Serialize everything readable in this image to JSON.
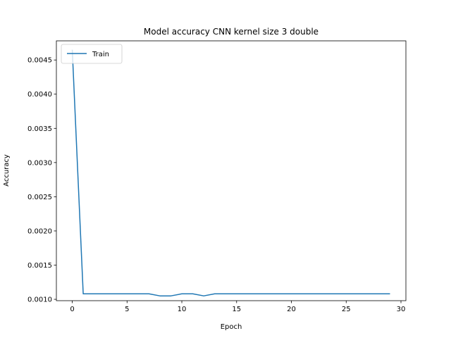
{
  "chart_data": {
    "type": "line",
    "title": "Model accuracy CNN kernel size 3 double",
    "xlabel": "Epoch",
    "ylabel": "Accuracy",
    "xlim": [
      -1.45,
      30.45
    ],
    "ylim": [
      0.00098,
      0.00478
    ],
    "x_ticks": [
      0,
      5,
      10,
      15,
      20,
      25,
      30
    ],
    "y_ticks": [
      0.001,
      0.0015,
      0.002,
      0.0025,
      0.003,
      0.0035,
      0.004,
      0.0045
    ],
    "x_tick_labels": [
      "0",
      "5",
      "10",
      "15",
      "20",
      "25",
      "30"
    ],
    "y_tick_labels": [
      "0.0010",
      "0.0015",
      "0.0020",
      "0.0025",
      "0.0030",
      "0.0035",
      "0.0040",
      "0.0045"
    ],
    "legend": {
      "placement": "upper-left",
      "entries": [
        "Train"
      ]
    },
    "grid": false,
    "series": [
      {
        "name": "Train",
        "color": "#1f77b4",
        "x": [
          0,
          1,
          2,
          3,
          4,
          5,
          6,
          7,
          8,
          9,
          10,
          11,
          12,
          13,
          14,
          15,
          16,
          17,
          18,
          19,
          20,
          21,
          22,
          23,
          24,
          25,
          26,
          27,
          28,
          29
        ],
        "y": [
          0.00465,
          0.00108,
          0.00108,
          0.00108,
          0.00108,
          0.00108,
          0.00108,
          0.00108,
          0.00105,
          0.00105,
          0.00108,
          0.00108,
          0.00105,
          0.00108,
          0.00108,
          0.00108,
          0.00108,
          0.00108,
          0.00108,
          0.00108,
          0.00108,
          0.00108,
          0.00108,
          0.00108,
          0.00108,
          0.00108,
          0.00108,
          0.00108,
          0.00108,
          0.00108
        ]
      }
    ]
  }
}
